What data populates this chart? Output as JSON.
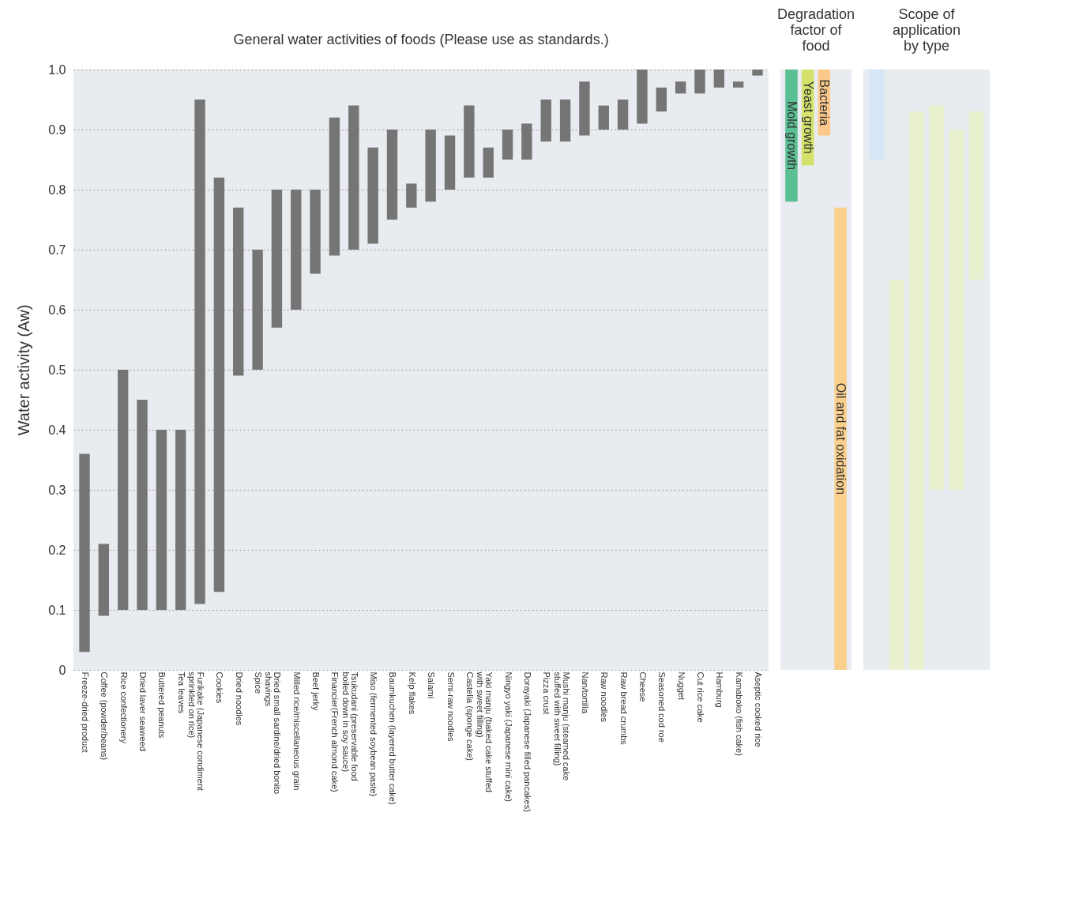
{
  "chart_data": [
    {
      "type": "bar",
      "title": "General water activities of foods (Please use as standards.)",
      "ylabel": "Water activity (Aw)",
      "categories": [
        "Freeze-dried product",
        "Coffee (powder/beans)",
        "Rice confectionery",
        "Dried laver seaweed",
        "Buttered peanuts",
        "Tea leaves",
        "Furikake (Japanese condiment\nsprinkled on rice)",
        "Cookies",
        "Dried noodles",
        "Spice",
        "Dried small sardine/dried bonito\nshavings",
        "Milled rice/miscellaneous grain",
        "Beef jerky",
        "Financier(French almond cake)",
        "Tsukudani (preservable food\nboiled down in soy sauce)",
        "Miso (fermented soybean paste)",
        "Baumkuchen (layered butter cake)",
        "Kelp flakes",
        "Salami",
        "Semi-raw noodles",
        "Castella (sponge cake)",
        "Yaki manju (baked cake stuffed\nwith sweet filling)",
        "Ningyo yaki (Japanese mini cake)",
        "Dorayaki (Japanese filled pancakes)",
        "Pizza crust",
        "Mushi manju (steamed cake\nstuffed with sweet filling)",
        "Nan/tortilla",
        "Raw noodles",
        "Raw bread crumbs",
        "Cheese",
        "Seasoned cod roe",
        "Nugget",
        "Cut rice cake",
        "Hamburg",
        "Kamaboko (fish cake)",
        "Aseptic cooked rice"
      ],
      "base": [
        0.03,
        0.09,
        0.1,
        0.1,
        0.1,
        0.1,
        0.11,
        0.13,
        0.49,
        0.5,
        0.57,
        0.6,
        0.66,
        0.69,
        0.7,
        0.71,
        0.75,
        0.77,
        0.78,
        0.8,
        0.82,
        0.82,
        0.85,
        0.85,
        0.88,
        0.88,
        0.89,
        0.9,
        0.9,
        0.91,
        0.93,
        0.96,
        0.96,
        0.97,
        0.97,
        0.99
      ],
      "values": [
        0.33,
        0.12,
        0.4,
        0.35,
        0.3,
        0.3,
        0.84,
        0.69,
        0.28,
        0.2,
        0.23,
        0.2,
        0.14,
        0.23,
        0.24,
        0.16,
        0.15,
        0.04,
        0.12,
        0.09,
        0.12,
        0.05,
        0.05,
        0.06,
        0.07,
        0.07,
        0.09,
        0.04,
        0.05,
        0.09,
        0.04,
        0.02,
        0.04,
        0.03,
        0.01,
        0.01
      ],
      "color": "#757575",
      "ylim": [
        0,
        1
      ],
      "yticks": [
        {
          "value": 0,
          "label": "0"
        },
        0.1,
        0.2,
        0.3,
        0.4,
        0.5,
        0.6,
        0.7,
        0.8,
        0.9,
        {
          "value": 1,
          "label": "1.0"
        }
      ],
      "grid": "y"
    },
    {
      "type": "bar",
      "title": "Degradation\nfactor of\nfood",
      "categories": [
        "Mold growth",
        "Yeast growth",
        "Bacteria",
        "Oil and fat oxidation"
      ],
      "base": [
        0.78,
        0.84,
        0.89,
        0
      ],
      "values": [
        0.22,
        0.16,
        0.11,
        0.77
      ],
      "colors": [
        "#5bbf94",
        "#d4e26b",
        "#fcc98a",
        "#fbd08d"
      ],
      "ylim": [
        0,
        1
      ],
      "tick_labels": false
    },
    {
      "type": "bar",
      "title": "Scope of\napplication\nby type",
      "categories": [
        null,
        null,
        null,
        null,
        null,
        null
      ],
      "base": [
        0.85,
        0,
        0,
        0.3,
        0.3,
        0.65
      ],
      "values": [
        0.15,
        0.65,
        0.93,
        0.64,
        0.6,
        0.28
      ],
      "colors": [
        "#d5e6f6",
        "#e9f1cf",
        "#e9f1cf",
        "#e9f1cf",
        "#e9f1cf",
        "#e9f1cf"
      ],
      "ylim": [
        0,
        1
      ],
      "tick_labels": false
    }
  ]
}
